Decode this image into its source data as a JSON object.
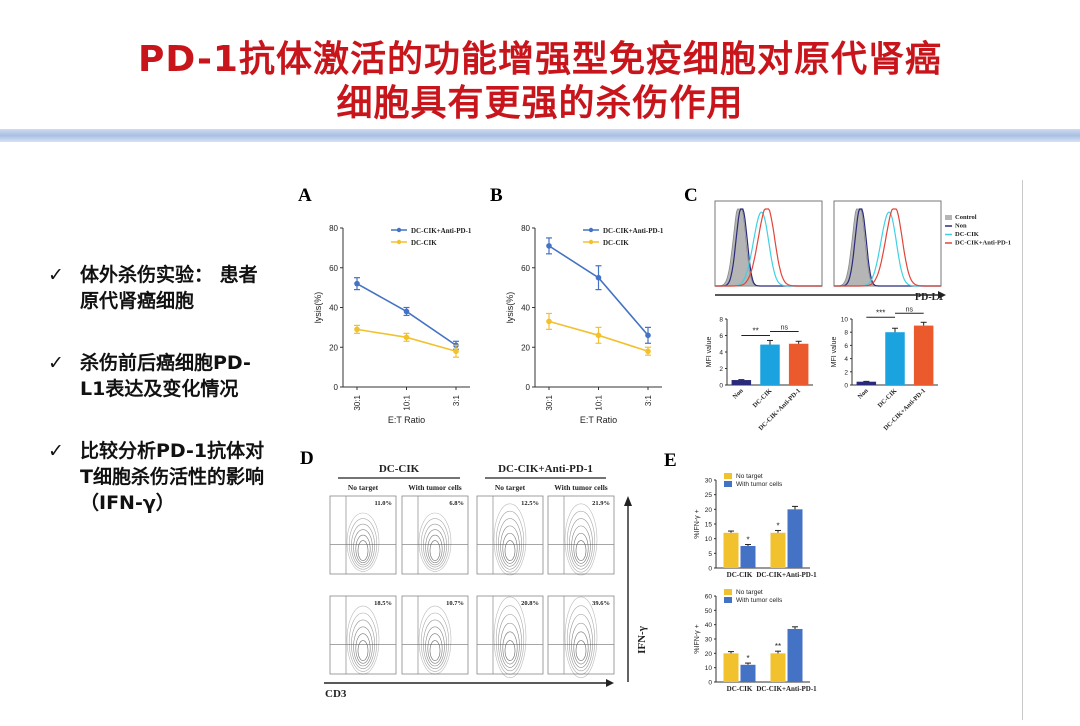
{
  "slide": {
    "title_line1": "PD-1抗体激活的功能增强型免疫细胞对原代肾癌",
    "title_line2": "细胞具有更强的杀伤作用",
    "bullets": [
      {
        "check": "✓",
        "lines": [
          "体外杀伤实验：  患者",
          "原代肾癌细胞"
        ]
      },
      {
        "check": "✓",
        "lines": [
          "杀伤前后癌细胞PD-",
          "L1表达及变化情况"
        ]
      },
      {
        "check": "✓",
        "lines": [
          "比较分析PD-1抗体对",
          "T细胞杀伤活性的影响",
          "（IFN-γ）"
        ]
      }
    ],
    "colors": {
      "title": "#c8151b",
      "blue_series": "#4472c4",
      "yellow_series": "#f2c12e",
      "cyan": "#1ba3e0",
      "orange": "#ea5a2c",
      "navy": "#2a2a7a"
    }
  },
  "panel_labels": {
    "A": "A",
    "B": "B",
    "C": "C",
    "D": "D",
    "E": "E"
  },
  "chart_data": [
    {
      "id": "A",
      "type": "line",
      "categories": [
        "30:1",
        "10:1",
        "3:1"
      ],
      "series": [
        {
          "name": "DC-CIK+Anti-PD-1",
          "values": [
            52,
            38,
            21
          ],
          "err": [
            3,
            2,
            2
          ]
        },
        {
          "name": "DC-CIK",
          "values": [
            29,
            25,
            18
          ],
          "err": [
            2,
            2,
            3
          ]
        }
      ],
      "xlabel": "E:T Ratio",
      "ylabel": "lysis(%)",
      "ylim": [
        0,
        80
      ],
      "yticks": [
        "0",
        "20",
        "40",
        "60",
        "80"
      ]
    },
    {
      "id": "B",
      "type": "line",
      "categories": [
        "30:1",
        "10:1",
        "3:1"
      ],
      "series": [
        {
          "name": "DC-CIK+Anti-PD-1",
          "values": [
            71,
            55,
            26
          ],
          "err": [
            4,
            6,
            4
          ]
        },
        {
          "name": "DC-CIK",
          "values": [
            33,
            26,
            18
          ],
          "err": [
            4,
            4,
            2
          ]
        }
      ],
      "xlabel": "E:T Ratio",
      "ylabel": "lysis(%)",
      "ylim": [
        0,
        80
      ],
      "yticks": [
        "0",
        "20",
        "40",
        "60",
        "80"
      ]
    },
    {
      "id": "C-hist",
      "type": "histogram",
      "legend": [
        "Control",
        "Non",
        "DC-CIK",
        "DC-CIK+Anti-PD-1"
      ],
      "xlabel": "PD-L1"
    },
    {
      "id": "C1",
      "type": "bar",
      "categories": [
        "Non",
        "DC-CIK",
        "DC-CIK+Anti-PD-1"
      ],
      "values": [
        0.6,
        4.9,
        5.0
      ],
      "err": [
        0.05,
        0.5,
        0.3
      ],
      "ylabel": "MFI value",
      "ylim": [
        0,
        8
      ],
      "yticks": [
        "0",
        "2",
        "4",
        "6",
        "8"
      ],
      "sig": [
        "**",
        "ns"
      ]
    },
    {
      "id": "C2",
      "type": "bar",
      "categories": [
        "Non",
        "DC-CIK",
        "DC-CIK+Anti-PD-1"
      ],
      "values": [
        0.5,
        8.0,
        9.0
      ],
      "err": [
        0.05,
        0.6,
        0.5
      ],
      "ylabel": "MFI value",
      "ylim": [
        0,
        10
      ],
      "yticks": [
        "0",
        "2",
        "4",
        "6",
        "8",
        "10"
      ],
      "sig": [
        "***",
        "ns"
      ]
    },
    {
      "id": "D",
      "type": "table",
      "groups": [
        "DC-CIK",
        "DC-CIK+Anti-PD-1"
      ],
      "columns": [
        "No target",
        "With tumor cells",
        "No target",
        "With tumor cells"
      ],
      "percentages": [
        [
          "11.0%",
          "6.8%",
          "12.5%",
          "21.9%"
        ],
        [
          "18.5%",
          "10.7%",
          "20.8%",
          "39.6%"
        ]
      ],
      "xlabel": "CD3",
      "ylabel": "IFN-γ"
    },
    {
      "id": "E1",
      "type": "bar",
      "categories": [
        "DC-CIK",
        "DC-CIK+Anti-PD-1"
      ],
      "series": [
        {
          "name": "No target",
          "values": [
            12,
            12
          ],
          "err": [
            0.6,
            0.8
          ]
        },
        {
          "name": "With tumor cells",
          "values": [
            7.5,
            20
          ],
          "err": [
            0.5,
            1.0
          ]
        }
      ],
      "marks": [
        "*",
        "*"
      ],
      "ylabel": "%IFN-γ +",
      "ylim": [
        0,
        30
      ],
      "yticks": [
        "0",
        "5",
        "10",
        "15",
        "20",
        "25",
        "30"
      ]
    },
    {
      "id": "E2",
      "type": "bar",
      "categories": [
        "DC-CIK",
        "DC-CIK+Anti-PD-1"
      ],
      "series": [
        {
          "name": "No target",
          "values": [
            20,
            20
          ],
          "err": [
            1.2,
            1.5
          ]
        },
        {
          "name": "With tumor cells",
          "values": [
            12,
            37
          ],
          "err": [
            1.2,
            1.5
          ]
        }
      ],
      "marks": [
        "*",
        "**"
      ],
      "ylabel": "%IFN-γ +",
      "ylim": [
        0,
        60
      ],
      "yticks": [
        "0",
        "10",
        "20",
        "30",
        "40",
        "50",
        "60"
      ]
    }
  ]
}
